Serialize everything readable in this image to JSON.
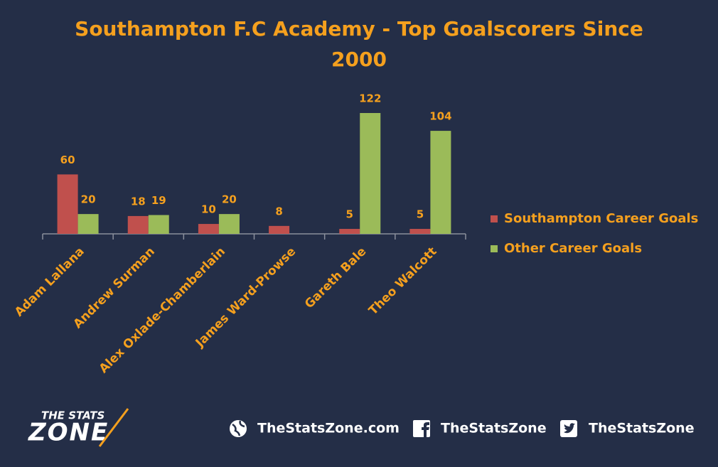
{
  "chart_data": {
    "type": "bar",
    "title": "Southampton F.C Academy - Top Goalscorers Since 2000",
    "categories": [
      "Adam Lallana",
      "Andrew Surman",
      "Alex Oxlade-Chamberlain",
      "James Ward-Prowse",
      "Gareth Bale",
      "Theo Walcott"
    ],
    "series": [
      {
        "name": "Southampton Career Goals",
        "color": "#c0504d",
        "values": [
          60,
          18,
          10,
          8,
          5,
          5
        ]
      },
      {
        "name": "Other Career Goals",
        "color": "#9bbb59",
        "values": [
          20,
          19,
          20,
          null,
          122,
          104
        ]
      }
    ],
    "legend": "right"
  },
  "footer": {
    "logo_top": "THE STATS",
    "logo_bottom": "ZONE",
    "website": "TheStatsZone.com",
    "facebook": "TheStatsZone",
    "twitter": "TheStatsZone"
  }
}
